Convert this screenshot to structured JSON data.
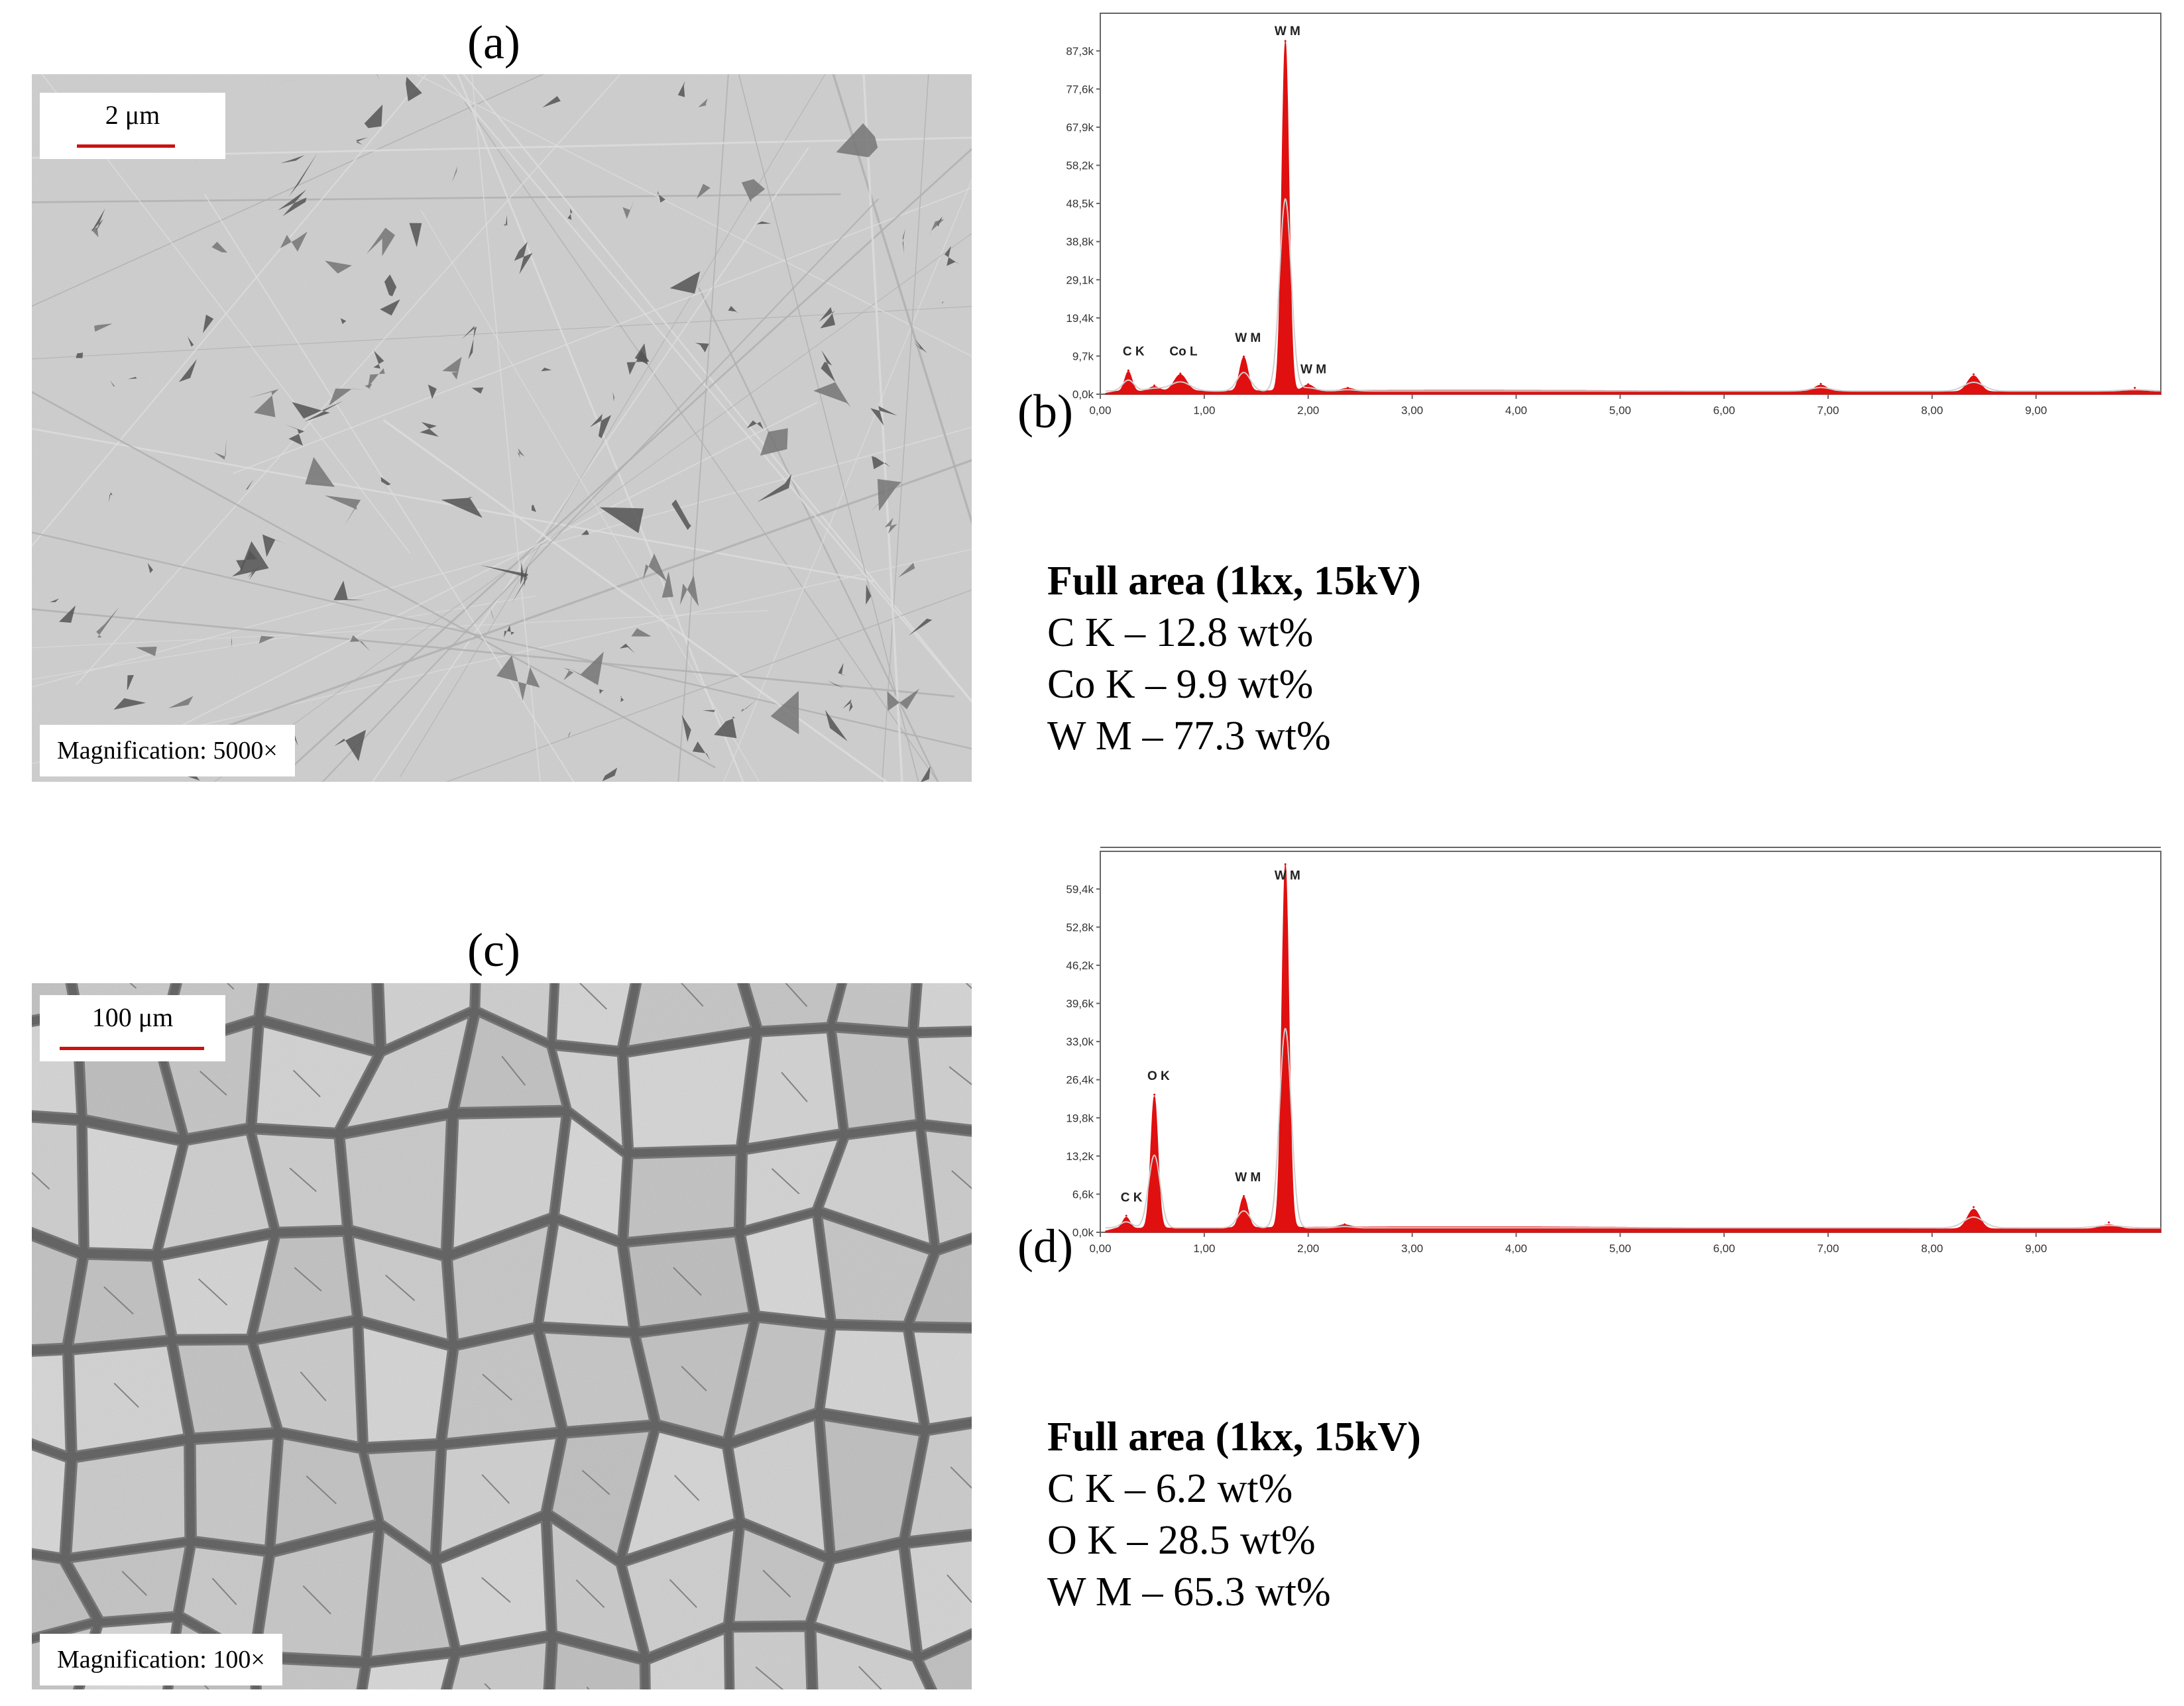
{
  "panels": {
    "a": {
      "letter": "(a)",
      "scale_label": "2 μm",
      "magnification": "Magnification: 5000×"
    },
    "b": {
      "letter": "(b)",
      "composition": {
        "title": "Full area (1kx, 15kV)",
        "lines": [
          "C K – 12.8 wt%",
          "Co K – 9.9 wt%",
          "W M – 77.3 wt%"
        ]
      }
    },
    "c": {
      "letter": "(c)",
      "scale_label": "100 μm",
      "magnification": "Magnification: 100×"
    },
    "d": {
      "letter": "(d)",
      "composition": {
        "title": "Full area (1kx, 15kV)",
        "lines": [
          "C K – 6.2 wt%",
          "O K – 28.5 wt%",
          "W M – 65.3 wt%"
        ]
      }
    }
  },
  "colors": {
    "peak_fill": "#e01010",
    "axis": "#666666",
    "scale_bar": "#cc1111"
  },
  "chart_data": [
    {
      "id": "b",
      "type": "area",
      "x_ticks": [
        "0,00",
        "1,00",
        "2,00",
        "3,00",
        "4,00",
        "5,00",
        "6,00",
        "7,00",
        "8,00",
        "9,00"
      ],
      "y_ticks": [
        "0,0k",
        "9,7k",
        "19,4k",
        "29,1k",
        "38,8k",
        "48,5k",
        "58,2k",
        "67,9k",
        "77,6k",
        "87,3k"
      ],
      "xlim": [
        0,
        10.2
      ],
      "ylim": [
        0,
        96000
      ],
      "background": 1000,
      "peaks": [
        {
          "x": 0.27,
          "y": 5000,
          "w": 0.035
        },
        {
          "x": 0.77,
          "y": 4200,
          "w": 0.06
        },
        {
          "x": 0.52,
          "y": 1200,
          "w": 0.05
        },
        {
          "x": 1.38,
          "y": 8500,
          "w": 0.04
        },
        {
          "x": 1.78,
          "y": 88000,
          "w": 0.035
        },
        {
          "x": 2.0,
          "y": 1500,
          "w": 0.05
        },
        {
          "x": 2.38,
          "y": 600,
          "w": 0.05
        },
        {
          "x": 6.93,
          "y": 1600,
          "w": 0.06
        },
        {
          "x": 8.4,
          "y": 4000,
          "w": 0.06
        },
        {
          "x": 9.95,
          "y": 600,
          "w": 0.08
        }
      ],
      "peak_labels": [
        {
          "text": "C  K",
          "x": 0.32,
          "y": 9800
        },
        {
          "text": "Co L",
          "x": 0.8,
          "y": 9800
        },
        {
          "text": "W  M",
          "x": 1.42,
          "y": 13200
        },
        {
          "text": "W  M",
          "x": 1.8,
          "y": 90500
        },
        {
          "text": "W  M",
          "x": 2.05,
          "y": 5300
        }
      ]
    },
    {
      "id": "d",
      "type": "area",
      "x_ticks": [
        "0,00",
        "1,00",
        "2,00",
        "3,00",
        "4,00",
        "5,00",
        "6,00",
        "7,00",
        "8,00",
        "9,00"
      ],
      "y_ticks": [
        "0,0k",
        "6,6k",
        "13,2k",
        "19,8k",
        "26,4k",
        "33,0k",
        "39,6k",
        "46,2k",
        "52,8k",
        "59,4k"
      ],
      "xlim": [
        0,
        10.2
      ],
      "ylim": [
        0,
        62000
      ],
      "background": 900,
      "peaks": [
        {
          "x": 0.25,
          "y": 1800,
          "w": 0.035
        },
        {
          "x": 0.52,
          "y": 21500,
          "w": 0.035
        },
        {
          "x": 1.38,
          "y": 5000,
          "w": 0.04
        },
        {
          "x": 1.78,
          "y": 59000,
          "w": 0.035
        },
        {
          "x": 2.35,
          "y": 400,
          "w": 0.05
        },
        {
          "x": 8.4,
          "y": 3200,
          "w": 0.06
        },
        {
          "x": 9.7,
          "y": 700,
          "w": 0.08
        }
      ],
      "peak_labels": [
        {
          "text": "C  K",
          "x": 0.3,
          "y": 5000
        },
        {
          "text": "O  K",
          "x": 0.56,
          "y": 24800
        },
        {
          "text": "W  M",
          "x": 1.42,
          "y": 8300
        },
        {
          "text": "W  M",
          "x": 1.8,
          "y": 57400
        }
      ]
    }
  ]
}
